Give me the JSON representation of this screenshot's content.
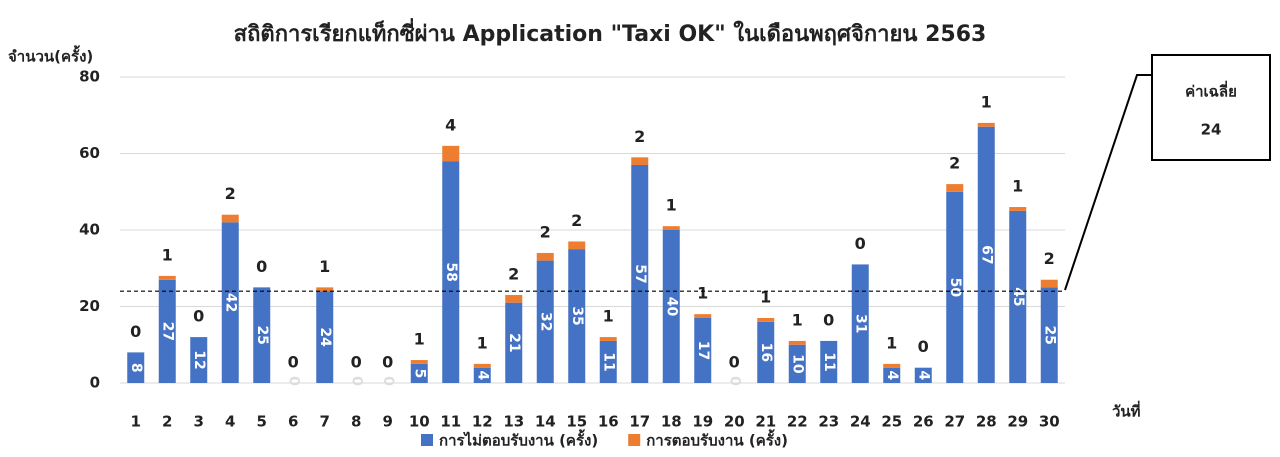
{
  "chart_data": {
    "type": "stacked_bar",
    "title": "สถิติการเรียกแท็กซี่ผ่าน Application \"Taxi OK\" ในเดือนพฤศจิกายน 2563",
    "y_label": "จำนวน(ครั้ง)",
    "x_label": "วันที่",
    "categories": [
      "1",
      "2",
      "3",
      "4",
      "5",
      "6",
      "7",
      "8",
      "9",
      "10",
      "11",
      "12",
      "13",
      "14",
      "15",
      "16",
      "17",
      "18",
      "19",
      "20",
      "21",
      "22",
      "23",
      "24",
      "25",
      "26",
      "27",
      "28",
      "29",
      "30"
    ],
    "series": [
      {
        "name": "การไม่ตอบรับงาน (ครั้ง)",
        "color": "#4472c4",
        "values": [
          8,
          27,
          12,
          42,
          25,
          0,
          24,
          0,
          0,
          5,
          58,
          4,
          21,
          32,
          35,
          11,
          57,
          40,
          17,
          0,
          16,
          10,
          11,
          31,
          4,
          4,
          50,
          67,
          45,
          25
        ]
      },
      {
        "name": "การตอบรับงาน (ครั้ง)",
        "color": "#ed7d31",
        "values": [
          0,
          1,
          0,
          2,
          0,
          0,
          1,
          0,
          0,
          1,
          4,
          1,
          2,
          2,
          2,
          1,
          2,
          1,
          1,
          0,
          1,
          1,
          0,
          0,
          1,
          0,
          2,
          1,
          1,
          2
        ]
      }
    ],
    "average_label": "ค่าเฉลี่ย",
    "average": 24,
    "ylim": [
      0,
      80
    ],
    "yticks": [
      0,
      20,
      40,
      60,
      80
    ],
    "grid": true
  }
}
